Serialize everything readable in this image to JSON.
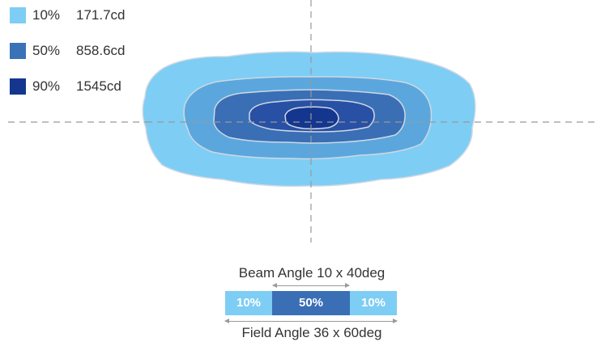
{
  "legend": [
    {
      "percent": "10%",
      "value": "171.7cd",
      "color": "#7ecdf4"
    },
    {
      "percent": "50%",
      "value": "858.6cd",
      "color": "#3a72b8"
    },
    {
      "percent": "90%",
      "value": "1545cd",
      "color": "#14368f"
    }
  ],
  "contour_colors": [
    "#7ecdf4",
    "#5ba7dd",
    "#3a6fb6",
    "#2850a4",
    "#14368f"
  ],
  "beam": {
    "beam_label": "Beam Angle 10 x 40deg",
    "field_label": "Field Angle 36 x 60deg",
    "segments": [
      {
        "label": "10%",
        "color": "#7ecdf4"
      },
      {
        "label": "50%",
        "color": "#3a6fb6"
      },
      {
        "label": "10%",
        "color": "#7ecdf4"
      }
    ]
  }
}
